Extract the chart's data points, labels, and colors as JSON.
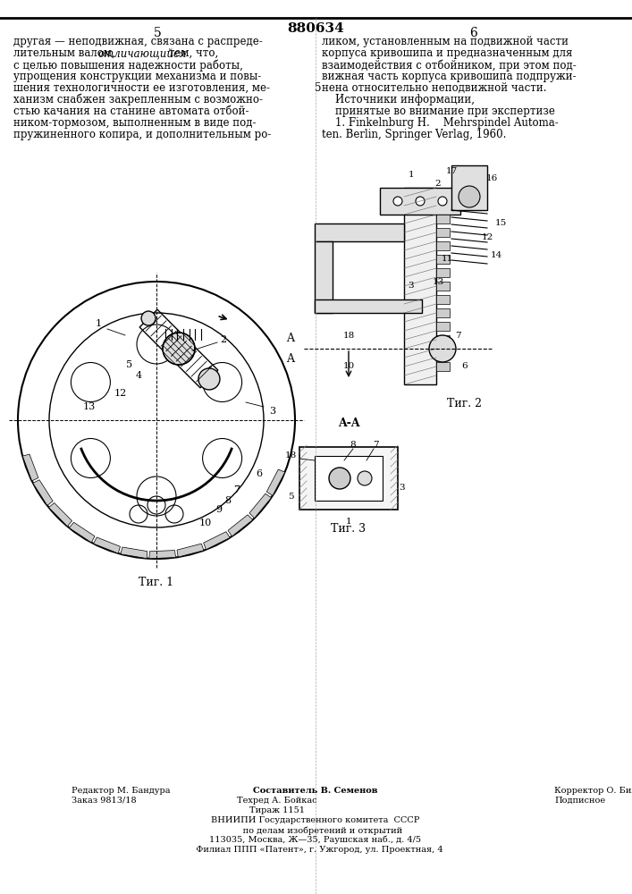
{
  "patent_number": "880634",
  "page_left": "5",
  "page_right": "6",
  "bg_color": "#ffffff",
  "text_color": "#000000",
  "line_color": "#000000",
  "left_text": "другая — неподвижная, связана с распреде-\nлительным валом, отличающийся тем, что,\nс целью повышения надежности работы,\nупрощения конструкции механизма и повы-\nшения технологичности ее изготовления, ме-\nханизм снабжен закрепленным с возможно-\nстью качания на станине автомата отбой-\nником-тормозом, выполненным в виде под-\nпружиненного копира, и дополнительным ро-",
  "right_text_top": "ликом, установленным на подвижной части\nкорпуса кривошипа и предназначенным для\nвзаимодействия с отбойником, при этом под-\nвижная часть корпуса кривошипа подпружи-\nнена относительно неподвижной части.\n    Источники информации,\n    принятые во внимание при экспертизе\n    1. Finkelnburg H.    Mehrspindel Automa-\nten. Berlin, Springer Verlag, 1960.",
  "bottom_text_left": "Редактор М. Бандура\nЗаказ 9813/18",
  "bottom_text_center": "Составитель В. Семенов\nТехред А. Бойкас\nТираж 1151\nВНИИПИ Государственного комитета  СССР\n     по делам изобретений и открытий\n113035, Москва, Ж—35, Раушская наб., д. 4/5\n   Филиал ППП «Патент», г. Ужгород, ул. Проектная, 4",
  "bottom_text_right": "Корректор О. Билак\nПодписное",
  "fig1_label": "Τиг. 1",
  "fig2_label": "Τиг. 2",
  "fig3_label": "Τиг. 3",
  "section_label": "A-A"
}
